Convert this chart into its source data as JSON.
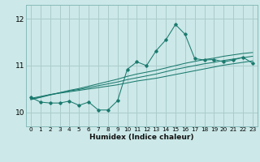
{
  "bg_color": "#cce8e8",
  "line_color": "#1a7a6e",
  "grid_color": "#aacccc",
  "xlabel": "Humidex (Indice chaleur)",
  "xlim": [
    -0.5,
    23.5
  ],
  "ylim": [
    9.7,
    12.3
  ],
  "yticks": [
    10,
    11,
    12
  ],
  "xticks": [
    0,
    1,
    2,
    3,
    4,
    5,
    6,
    7,
    8,
    9,
    10,
    11,
    12,
    13,
    14,
    15,
    16,
    17,
    18,
    19,
    20,
    21,
    22,
    23
  ],
  "main_series": [
    10.32,
    10.22,
    10.2,
    10.2,
    10.24,
    10.15,
    10.22,
    10.05,
    10.05,
    10.25,
    10.92,
    11.08,
    11.0,
    11.32,
    11.55,
    11.88,
    11.67,
    11.15,
    11.12,
    11.13,
    11.08,
    11.12,
    11.18,
    11.05
  ],
  "reg_lines": [
    [
      10.3,
      10.34,
      10.38,
      10.41,
      10.44,
      10.47,
      10.5,
      10.53,
      10.56,
      10.59,
      10.63,
      10.67,
      10.7,
      10.73,
      10.77,
      10.81,
      10.85,
      10.89,
      10.93,
      10.97,
      11.01,
      11.04,
      11.07,
      11.1
    ],
    [
      10.28,
      10.33,
      10.38,
      10.42,
      10.46,
      10.49,
      10.53,
      10.57,
      10.61,
      10.65,
      10.7,
      10.74,
      10.78,
      10.82,
      10.87,
      10.92,
      10.96,
      11.0,
      11.04,
      11.07,
      11.11,
      11.14,
      11.17,
      11.2
    ],
    [
      10.27,
      10.32,
      10.37,
      10.42,
      10.47,
      10.51,
      10.56,
      10.61,
      10.66,
      10.71,
      10.77,
      10.82,
      10.86,
      10.9,
      10.95,
      11.0,
      11.05,
      11.09,
      11.13,
      11.16,
      11.2,
      11.23,
      11.26,
      11.28
    ]
  ]
}
